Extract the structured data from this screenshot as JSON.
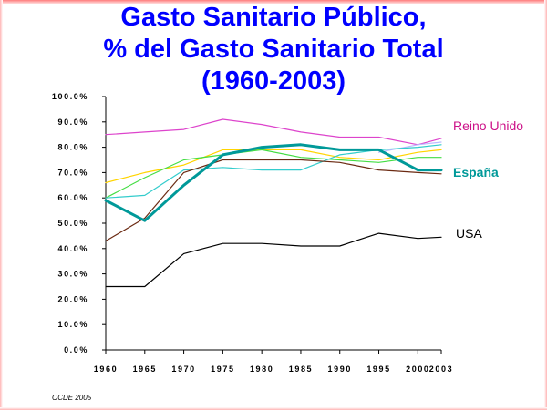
{
  "slide": {
    "title_lines": [
      "Gasto Sanitario Público,",
      "% del Gasto Sanitario Total",
      "(1960-2003)"
    ],
    "source": "OCDE 2005"
  },
  "chart_data": {
    "type": "line",
    "title": "Gasto Sanitario Público, % del Gasto Sanitario Total (1960-2003)",
    "xlabel": "",
    "ylabel": "",
    "x": [
      1960,
      1965,
      1970,
      1975,
      1980,
      1985,
      1990,
      1995,
      2000,
      2003
    ],
    "x_tick_labels": [
      "1960",
      "1965",
      "1970",
      "1975",
      "1980",
      "1985",
      "1990",
      "1995",
      "2000",
      "2003"
    ],
    "ylim": [
      0,
      100
    ],
    "y_ticks": [
      0,
      10,
      20,
      30,
      40,
      50,
      60,
      70,
      80,
      90,
      100
    ],
    "y_tick_labels": [
      "0.0%",
      "10.0%",
      "20.0%",
      "30.0%",
      "40.0%",
      "50.0%",
      "60.0%",
      "70.0%",
      "80.0%",
      "90.0%",
      "100.0%"
    ],
    "grid": false,
    "series": [
      {
        "name": "Reino Unido",
        "color": "#dd44cc",
        "width": 1.2,
        "label_color": "#cc1188",
        "values": [
          85,
          86,
          87,
          91,
          89,
          86,
          84,
          84,
          81,
          83.5
        ]
      },
      {
        "name": "",
        "color": "#bbbbff",
        "width": 1.2,
        "values": [
          null,
          null,
          null,
          null,
          null,
          null,
          null,
          78,
          81,
          82
        ]
      },
      {
        "name": "",
        "color": "#ffd400",
        "width": 1.2,
        "values": [
          66,
          70,
          73,
          79,
          79,
          79,
          76,
          75,
          78,
          79
        ]
      },
      {
        "name": "",
        "color": "#44dd44",
        "width": 1.2,
        "values": [
          60,
          68,
          75,
          77,
          79,
          76,
          75,
          74,
          76,
          76
        ]
      },
      {
        "name": "",
        "color": "#33cccc",
        "width": 1.2,
        "values": [
          60,
          61,
          71,
          72,
          71,
          71,
          77,
          79,
          80,
          81
        ]
      },
      {
        "name": "",
        "color": "#6b2a12",
        "width": 1.2,
        "values": [
          43,
          52,
          70,
          75,
          75,
          75,
          74,
          71,
          70,
          69.5
        ]
      },
      {
        "name": "España",
        "color": "#009999",
        "width": 3,
        "label_color": "#009999",
        "values": [
          59,
          51,
          65,
          77,
          80,
          81,
          79,
          79,
          71,
          71
        ]
      },
      {
        "name": "USA",
        "color": "#000000",
        "width": 1.2,
        "label_color": "#000000",
        "values": [
          25,
          25,
          38,
          42,
          42,
          41,
          41,
          46,
          44,
          44.5
        ]
      }
    ]
  }
}
